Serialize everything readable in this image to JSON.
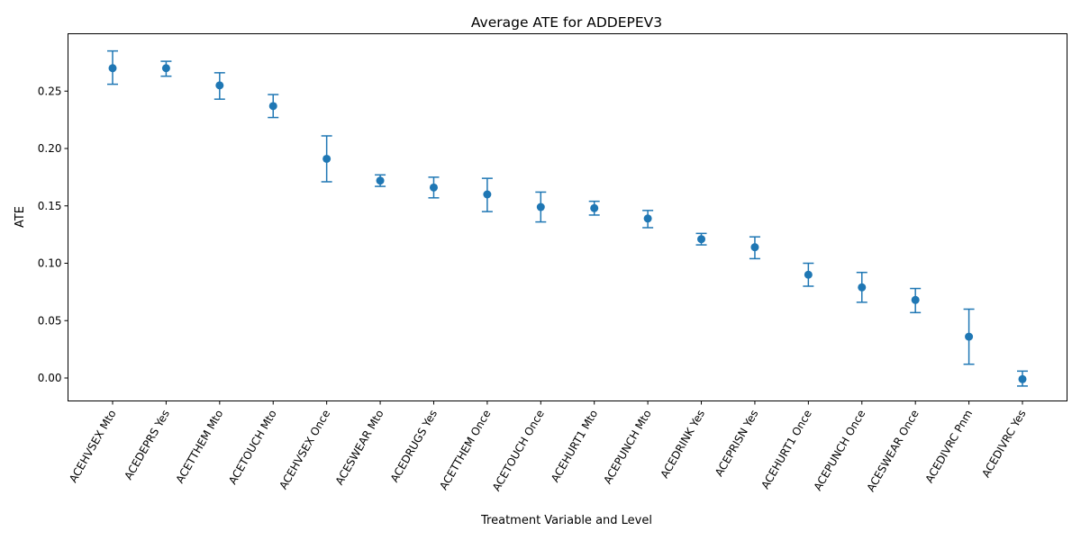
{
  "chart_data": {
    "type": "errorbar",
    "title": "Average ATE for ADDEPEV3",
    "xlabel": "Treatment Variable and Level",
    "ylabel": "ATE",
    "ylim": [
      -0.02,
      0.3
    ],
    "yticks": [
      0.0,
      0.05,
      0.1,
      0.15,
      0.2,
      0.25
    ],
    "ytick_labels": [
      "0.00",
      "0.05",
      "0.10",
      "0.15",
      "0.20",
      "0.25"
    ],
    "grid": false,
    "categories": [
      "ACEHVSEX Mto",
      "ACEDEPRS Yes",
      "ACETTHEM Mto",
      "ACETOUCH Mto",
      "ACEHVSEX Once",
      "ACESWEAR Mto",
      "ACEDRUGS Yes",
      "ACETTHEM Once",
      "ACETOUCH Once",
      "ACEHURT1 Mto",
      "ACEPUNCH Mto",
      "ACEDRINK Yes",
      "ACEPRISN Yes",
      "ACEHURT1 Once",
      "ACEPUNCH Once",
      "ACESWEAR Once",
      "ACEDIVRC Pnm",
      "ACEDIVRC Yes"
    ],
    "values": [
      0.27,
      0.27,
      0.255,
      0.237,
      0.191,
      0.172,
      0.166,
      0.16,
      0.149,
      0.148,
      0.139,
      0.121,
      0.114,
      0.09,
      0.079,
      0.068,
      0.036,
      -0.001
    ],
    "lower": [
      0.256,
      0.263,
      0.243,
      0.227,
      0.171,
      0.167,
      0.157,
      0.145,
      0.136,
      0.142,
      0.131,
      0.116,
      0.104,
      0.08,
      0.066,
      0.057,
      0.012,
      -0.007
    ],
    "upper": [
      0.285,
      0.276,
      0.266,
      0.247,
      0.211,
      0.177,
      0.175,
      0.174,
      0.162,
      0.154,
      0.146,
      0.126,
      0.123,
      0.1,
      0.092,
      0.078,
      0.06,
      0.006
    ],
    "color": "#1f77b4"
  }
}
